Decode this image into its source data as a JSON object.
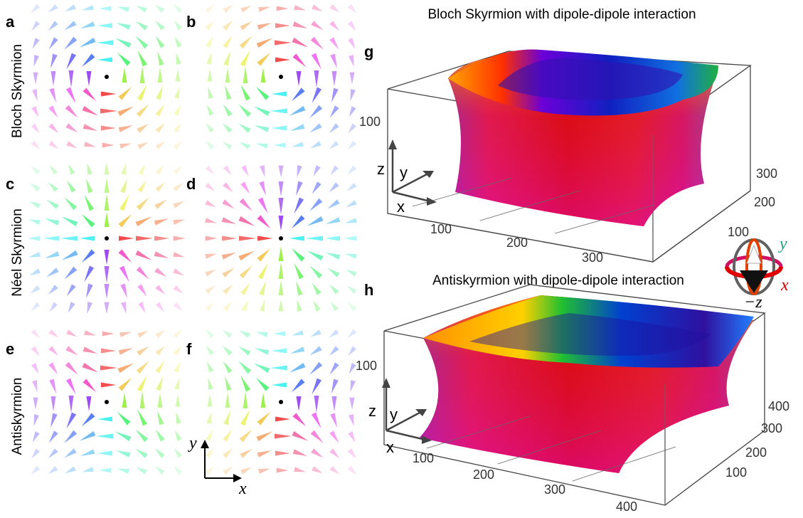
{
  "panels": [
    {
      "label": "a"
    },
    {
      "label": "b"
    },
    {
      "label": "c"
    },
    {
      "label": "d"
    },
    {
      "label": "e"
    },
    {
      "label": "f"
    }
  ],
  "row_labels": [
    "Bloch Skyrmion",
    "Néel Skyrmion",
    "Antiskyrmion"
  ],
  "axes_inset": {
    "y": "y",
    "x": "x"
  },
  "plot_g": {
    "label": "g",
    "title": "Bloch Skyrmion with dipole-dipole interaction",
    "z_ticks": [
      100
    ],
    "x_ticks": [
      100,
      200,
      300
    ],
    "y_ticks": [
      100,
      200,
      300
    ],
    "axis_labels": {
      "z": "z",
      "y": "y",
      "x": "x"
    }
  },
  "plot_h": {
    "label": "h",
    "title": "Antiskyrmion with dipole-dipole interaction",
    "z_ticks": [
      100
    ],
    "x_ticks": [
      100,
      200,
      300,
      400
    ],
    "y_ticks": [
      100,
      200,
      300,
      400
    ],
    "axis_labels": {
      "z": "z",
      "y": "y",
      "x": "x"
    }
  },
  "color_sphere": {
    "y": "y",
    "x": "x",
    "z": "−z"
  }
}
